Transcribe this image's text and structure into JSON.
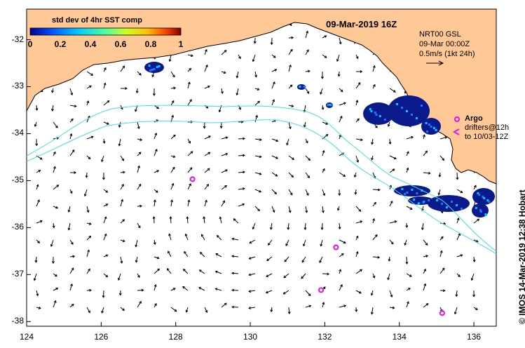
{
  "colorbar": {
    "title": "std dev of 4hr SST comp",
    "ticks": [
      "0",
      "0.2",
      "0.4",
      "0.6",
      "0.8",
      "1"
    ],
    "colors": [
      "#00008f",
      "#0050ff",
      "#00c8ff",
      "#50ff9f",
      "#d0ff20",
      "#ffc000",
      "#ff4000",
      "#800000"
    ]
  },
  "title": {
    "date": "09-Mar-2019 16Z"
  },
  "model": {
    "name": "NRT00 GSL",
    "time": "09-Mar 00:00Z",
    "scale": "0.5m/s (1kt 24h)"
  },
  "argo": {
    "label": "Argo",
    "drifters_line1": "drifters@12h",
    "drifters_line2": "to 10/03-12Z",
    "points": [
      [
        128.45,
        -34.97
      ],
      [
        131.9,
        -37.33
      ],
      [
        135.15,
        -37.82
      ],
      [
        132.3,
        -36.42
      ]
    ]
  },
  "axes": {
    "lon_range": [
      124,
      136.6
    ],
    "lat_range": [
      -38.1,
      -31.35
    ],
    "x_ticks": [
      "124",
      "126",
      "128",
      "130",
      "132",
      "134",
      "136"
    ],
    "y_ticks": [
      "-32",
      "-33",
      "-34",
      "-35",
      "-36",
      "-37",
      "-38"
    ]
  },
  "credit": "© IMOS 14-Mar-2019 12:38 Hobart",
  "colors": {
    "land": "#ffc896",
    "contour": "#40e0e8",
    "argo": "#e020e0",
    "sst_dark": "#0a1a8c"
  }
}
